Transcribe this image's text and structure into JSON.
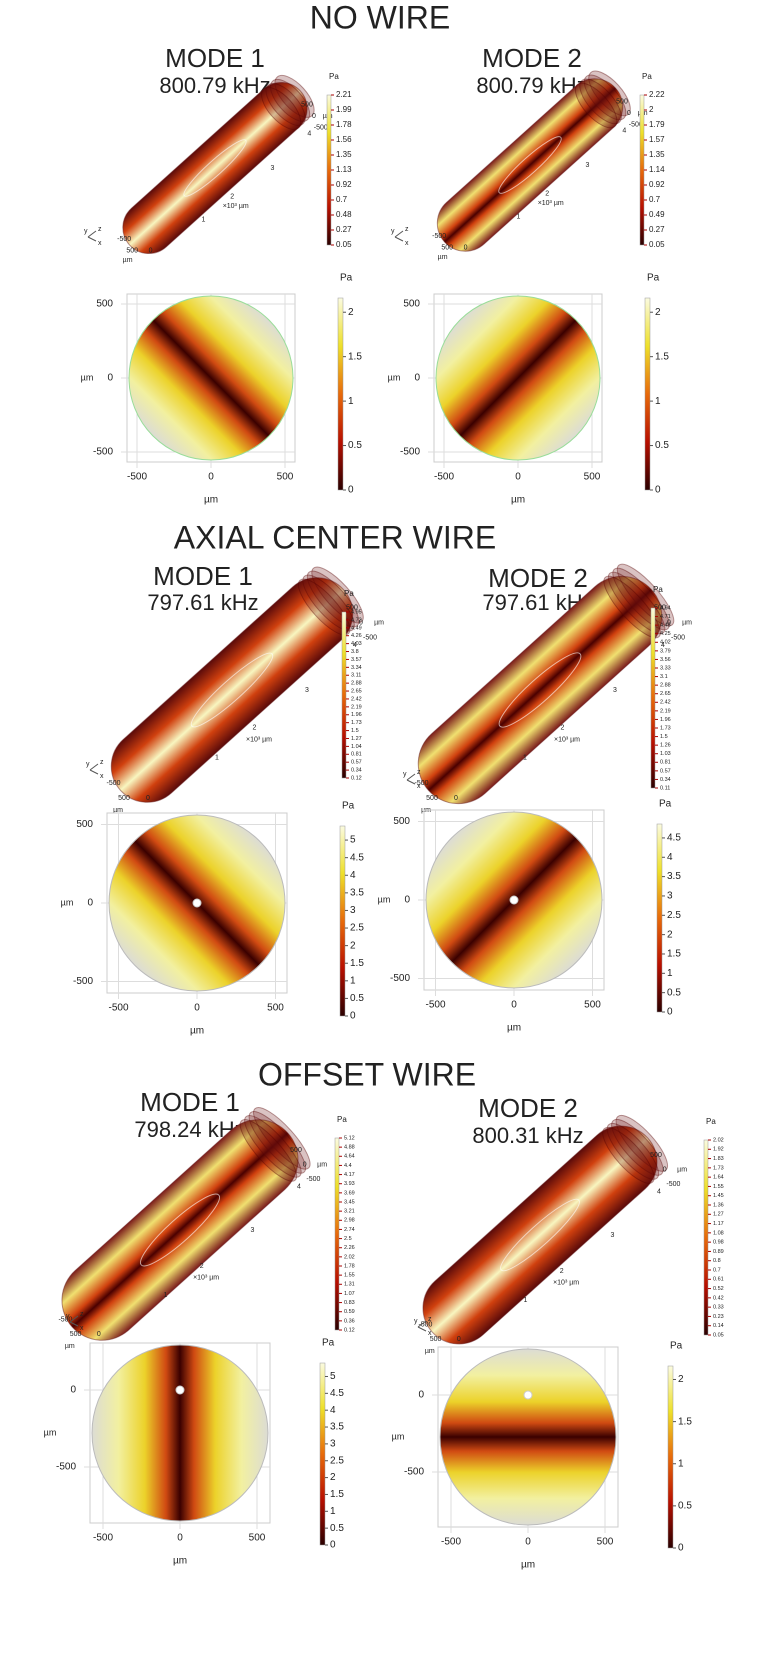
{
  "sections": [
    {
      "title": "NO WIRE",
      "panels": [
        {
          "mode": "MODE 1",
          "frequency": "800.79 kHz",
          "view3d": {
            "unit": "Pa",
            "colorbar_ticks": [
              2.21,
              1.99,
              1.78,
              1.56,
              1.35,
              1.13,
              0.92,
              0.7,
              0.48,
              0.27,
              0.05
            ],
            "axis_labels": [
              "500",
              "0",
              "-500",
              "4",
              "3",
              "2",
              "×10³ µm",
              "1",
              "-500",
              "0",
              "500",
              "µm",
              "µm"
            ],
            "triad": [
              "y",
              "z",
              "x"
            ]
          },
          "view2d": {
            "unit": "Pa",
            "x_ticks": [
              -500,
              0,
              500
            ],
            "y_ticks": [
              500,
              0,
              -500
            ],
            "x_label": "µm",
            "y_label": "µm",
            "colorbar_ticks": [
              0,
              0.5,
              1,
              1.5,
              2
            ]
          }
        },
        {
          "mode": "MODE 2",
          "frequency": "800.79 kHz",
          "view3d": {
            "unit": "Pa",
            "colorbar_ticks": [
              2.22,
              2,
              1.79,
              1.57,
              1.35,
              1.14,
              0.92,
              0.7,
              0.49,
              0.27,
              0.05
            ],
            "axis_labels": [
              "500",
              "0",
              "-500",
              "4",
              "3",
              "2",
              "×10³ µm",
              "1",
              "-500",
              "0",
              "500",
              "µm",
              "µm"
            ],
            "triad": [
              "y",
              "z",
              "x"
            ]
          },
          "view2d": {
            "unit": "Pa",
            "x_ticks": [
              -500,
              0,
              500
            ],
            "y_ticks": [
              500,
              0,
              -500
            ],
            "x_label": "µm",
            "y_label": "µm",
            "colorbar_ticks": [
              0,
              0.5,
              1,
              1.5,
              2
            ]
          }
        }
      ]
    },
    {
      "title": "AXIAL CENTER WIRE",
      "panels": [
        {
          "mode": "MODE 1",
          "frequency": "797.61 kHz",
          "view3d": {
            "unit": "Pa",
            "colorbar_ticks": [
              4.95,
              4.72,
              4.49,
              4.26,
              4.03,
              3.8,
              3.57,
              3.34,
              3.11,
              2.88,
              2.65,
              2.42,
              2.19,
              1.96,
              1.73,
              1.5,
              1.27,
              1.04,
              0.81,
              0.57,
              0.34,
              0.12
            ],
            "axis_labels": [
              "500",
              "0",
              "-500",
              "4",
              "3",
              "2",
              "×10³ µm",
              "1",
              "-500",
              "0",
              "500",
              "µm",
              "µm"
            ],
            "triad": [
              "y",
              "z",
              "x"
            ]
          },
          "view2d": {
            "unit": "Pa",
            "x_ticks": [
              -500,
              0,
              500
            ],
            "y_ticks": [
              500,
              0,
              -500
            ],
            "x_label": "µm",
            "y_label": "µm",
            "colorbar_ticks": [
              0,
              0.5,
              1,
              1.5,
              2,
              2.5,
              3,
              3.5,
              4,
              4.5,
              5
            ]
          }
        },
        {
          "mode": "MODE 2",
          "frequency": "797.61 kHz",
          "view3d": {
            "unit": "Pa",
            "colorbar_ticks": [
              4.94,
              4.71,
              4.48,
              4.25,
              4.02,
              3.79,
              3.56,
              3.33,
              3.1,
              2.88,
              2.65,
              2.42,
              2.19,
              1.96,
              1.73,
              1.5,
              1.26,
              1.03,
              0.81,
              0.57,
              0.34,
              0.11
            ],
            "axis_labels": [
              "500",
              "0",
              "-500",
              "4",
              "3",
              "2",
              "×10³ µm",
              "1",
              "-500",
              "0",
              "500",
              "µm",
              "µm"
            ],
            "triad": [
              "y",
              "z",
              "x"
            ]
          },
          "view2d": {
            "unit": "Pa",
            "x_ticks": [
              -500,
              0,
              500
            ],
            "y_ticks": [
              500,
              0,
              -500
            ],
            "x_label": "µm",
            "y_label": "µm",
            "colorbar_ticks": [
              0,
              0.5,
              1,
              1.5,
              2,
              2.5,
              3,
              3.5,
              4,
              4.5
            ]
          }
        }
      ]
    },
    {
      "title": "OFFSET WIRE",
      "panels": [
        {
          "mode": "MODE 1",
          "frequency": "798.24 kHz",
          "view3d": {
            "unit": "Pa",
            "colorbar_ticks": [
              5.12,
              4.88,
              4.64,
              4.4,
              4.17,
              3.93,
              3.69,
              3.45,
              3.21,
              2.98,
              2.74,
              2.5,
              2.26,
              2.02,
              1.78,
              1.55,
              1.31,
              1.07,
              0.83,
              0.59,
              0.36,
              0.12
            ],
            "axis_labels": [
              "500",
              "0",
              "-500",
              "4",
              "3",
              "2",
              "×10³ µm",
              "1",
              "-500",
              "0",
              "500",
              "µm",
              "µm"
            ],
            "triad": [
              "y",
              "z",
              "x"
            ]
          },
          "view2d": {
            "unit": "Pa",
            "x_ticks": [
              -500,
              0,
              500
            ],
            "y_ticks": [
              0,
              -500
            ],
            "x_label": "µm",
            "y_label": "µm",
            "colorbar_ticks": [
              0,
              0.5,
              1,
              1.5,
              2,
              2.5,
              3,
              3.5,
              4,
              4.5,
              5
            ]
          }
        },
        {
          "mode": "MODE 2",
          "frequency": "800.31 kHz",
          "view3d": {
            "unit": "Pa",
            "colorbar_ticks": [
              2.02,
              1.92,
              1.83,
              1.73,
              1.64,
              1.55,
              1.45,
              1.36,
              1.27,
              1.17,
              1.08,
              0.98,
              0.89,
              0.8,
              0.7,
              0.61,
              0.52,
              0.42,
              0.33,
              0.23,
              0.14,
              0.05
            ],
            "axis_labels": [
              "500",
              "0",
              "-500",
              "4",
              "3",
              "2",
              "×10³ µm",
              "1",
              "-500",
              "0",
              "500",
              "µm",
              "µm"
            ],
            "triad": [
              "y",
              "z",
              "x"
            ]
          },
          "view2d": {
            "unit": "Pa",
            "x_ticks": [
              -500,
              0,
              500
            ],
            "y_ticks": [
              0,
              -500
            ],
            "x_label": "µm",
            "y_label": "µm",
            "colorbar_ticks": [
              0,
              0.5,
              1,
              1.5,
              2
            ]
          }
        }
      ]
    }
  ]
}
